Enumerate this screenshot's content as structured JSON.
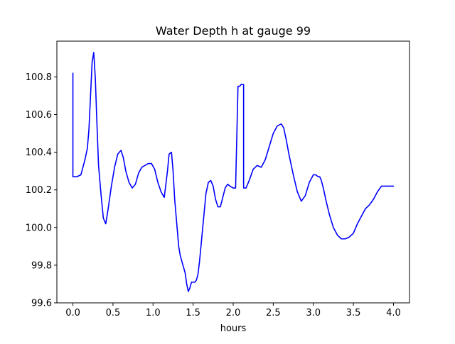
{
  "chart_data": {
    "type": "line",
    "title": "Water Depth h at gauge 99",
    "xlabel": "hours",
    "ylabel": "",
    "xlim": [
      -0.2,
      4.2
    ],
    "ylim": [
      99.6,
      100.99
    ],
    "xticks": [
      0.0,
      0.5,
      1.0,
      1.5,
      2.0,
      2.5,
      3.0,
      3.5,
      4.0
    ],
    "xtick_labels": [
      "0.0",
      "0.5",
      "1.0",
      "1.5",
      "2.0",
      "2.5",
      "3.0",
      "3.5",
      "4.0"
    ],
    "yticks": [
      99.6,
      99.8,
      100.0,
      100.2,
      100.4,
      100.6,
      100.8
    ],
    "ytick_labels": [
      "99.6",
      "99.8",
      "100.0",
      "100.2",
      "100.4",
      "100.6",
      "100.8"
    ],
    "grid": false,
    "legend": "none",
    "series": [
      {
        "color": "#0000ff",
        "x": [
          0.0,
          0.0,
          0.05,
          0.1,
          0.15,
          0.18,
          0.2,
          0.22,
          0.24,
          0.26,
          0.28,
          0.3,
          0.32,
          0.35,
          0.38,
          0.41,
          0.44,
          0.48,
          0.52,
          0.56,
          0.6,
          0.63,
          0.66,
          0.7,
          0.74,
          0.78,
          0.82,
          0.86,
          0.9,
          0.94,
          0.98,
          1.02,
          1.06,
          1.1,
          1.14,
          1.18,
          1.2,
          1.23,
          1.25,
          1.27,
          1.3,
          1.32,
          1.34,
          1.36,
          1.38,
          1.4,
          1.42,
          1.44,
          1.46,
          1.48,
          1.5,
          1.52,
          1.54,
          1.56,
          1.58,
          1.6,
          1.62,
          1.64,
          1.66,
          1.69,
          1.72,
          1.75,
          1.78,
          1.81,
          1.84,
          1.87,
          1.9,
          1.93,
          1.96,
          2.0,
          2.03,
          2.06,
          2.08,
          2.08,
          2.1,
          2.13,
          2.13,
          2.16,
          2.2,
          2.25,
          2.3,
          2.35,
          2.4,
          2.45,
          2.5,
          2.55,
          2.6,
          2.63,
          2.66,
          2.7,
          2.75,
          2.8,
          2.85,
          2.9,
          2.95,
          3.0,
          3.03,
          3.06,
          3.08,
          3.1,
          3.13,
          3.16,
          3.2,
          3.25,
          3.3,
          3.35,
          3.4,
          3.45,
          3.5,
          3.55,
          3.6,
          3.65,
          3.7,
          3.75,
          3.8,
          3.85,
          3.9,
          3.95,
          4.0
        ],
        "y": [
          100.82,
          100.27,
          100.27,
          100.28,
          100.36,
          100.42,
          100.52,
          100.7,
          100.88,
          100.93,
          100.79,
          100.55,
          100.33,
          100.18,
          100.05,
          100.02,
          100.1,
          100.22,
          100.32,
          100.39,
          100.41,
          100.37,
          100.3,
          100.24,
          100.21,
          100.23,
          100.29,
          100.32,
          100.33,
          100.34,
          100.34,
          100.31,
          100.24,
          100.19,
          100.16,
          100.3,
          100.39,
          100.4,
          100.3,
          100.15,
          100.0,
          99.9,
          99.85,
          99.82,
          99.79,
          99.76,
          99.7,
          99.66,
          99.68,
          99.71,
          99.71,
          99.71,
          99.72,
          99.75,
          99.82,
          99.91,
          100.0,
          100.09,
          100.18,
          100.24,
          100.25,
          100.22,
          100.15,
          100.11,
          100.11,
          100.16,
          100.21,
          100.23,
          100.22,
          100.21,
          100.21,
          100.75,
          100.75,
          100.75,
          100.76,
          100.76,
          100.21,
          100.21,
          100.25,
          100.31,
          100.33,
          100.32,
          100.36,
          100.43,
          100.5,
          100.54,
          100.55,
          100.53,
          100.47,
          100.38,
          100.28,
          100.19,
          100.14,
          100.17,
          100.24,
          100.28,
          100.28,
          100.27,
          100.27,
          100.25,
          100.2,
          100.14,
          100.07,
          100.0,
          99.96,
          99.94,
          99.94,
          99.95,
          99.97,
          100.02,
          100.06,
          100.1,
          100.12,
          100.15,
          100.19,
          100.22,
          100.22,
          100.22,
          100.22
        ]
      }
    ]
  }
}
